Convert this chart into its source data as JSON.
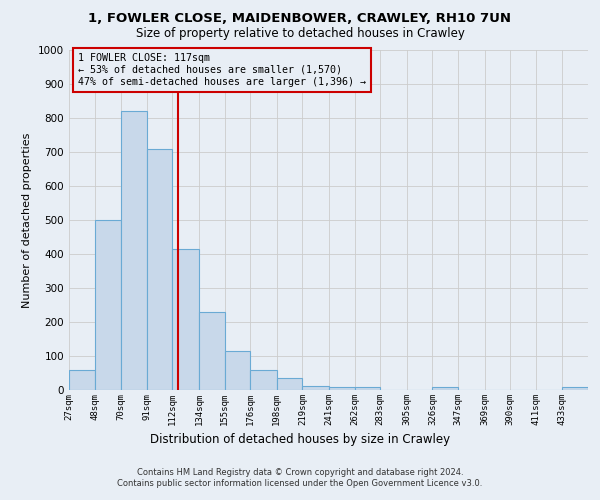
{
  "title1": "1, FOWLER CLOSE, MAIDENBOWER, CRAWLEY, RH10 7UN",
  "title2": "Size of property relative to detached houses in Crawley",
  "xlabel": "Distribution of detached houses by size in Crawley",
  "ylabel": "Number of detached properties",
  "bin_edges": [
    27,
    48,
    70,
    91,
    112,
    134,
    155,
    176,
    198,
    219,
    241,
    262,
    283,
    305,
    326,
    347,
    369,
    390,
    411,
    433,
    454
  ],
  "bar_heights": [
    60,
    500,
    820,
    710,
    415,
    230,
    115,
    60,
    35,
    12,
    10,
    10,
    0,
    0,
    10,
    0,
    0,
    0,
    0,
    10
  ],
  "bar_color": "#c8d8ea",
  "bar_edge_color": "#6aaad4",
  "property_line_x": 117,
  "property_line_color": "#cc0000",
  "annotation_text": "1 FOWLER CLOSE: 117sqm\n← 53% of detached houses are smaller (1,570)\n47% of semi-detached houses are larger (1,396) →",
  "annotation_box_color": "#cc0000",
  "ylim": [
    0,
    1000
  ],
  "yticks": [
    0,
    100,
    200,
    300,
    400,
    500,
    600,
    700,
    800,
    900,
    1000
  ],
  "grid_color": "#cccccc",
  "bg_color": "#e8eef5",
  "footnote1": "Contains HM Land Registry data © Crown copyright and database right 2024.",
  "footnote2": "Contains public sector information licensed under the Open Government Licence v3.0."
}
